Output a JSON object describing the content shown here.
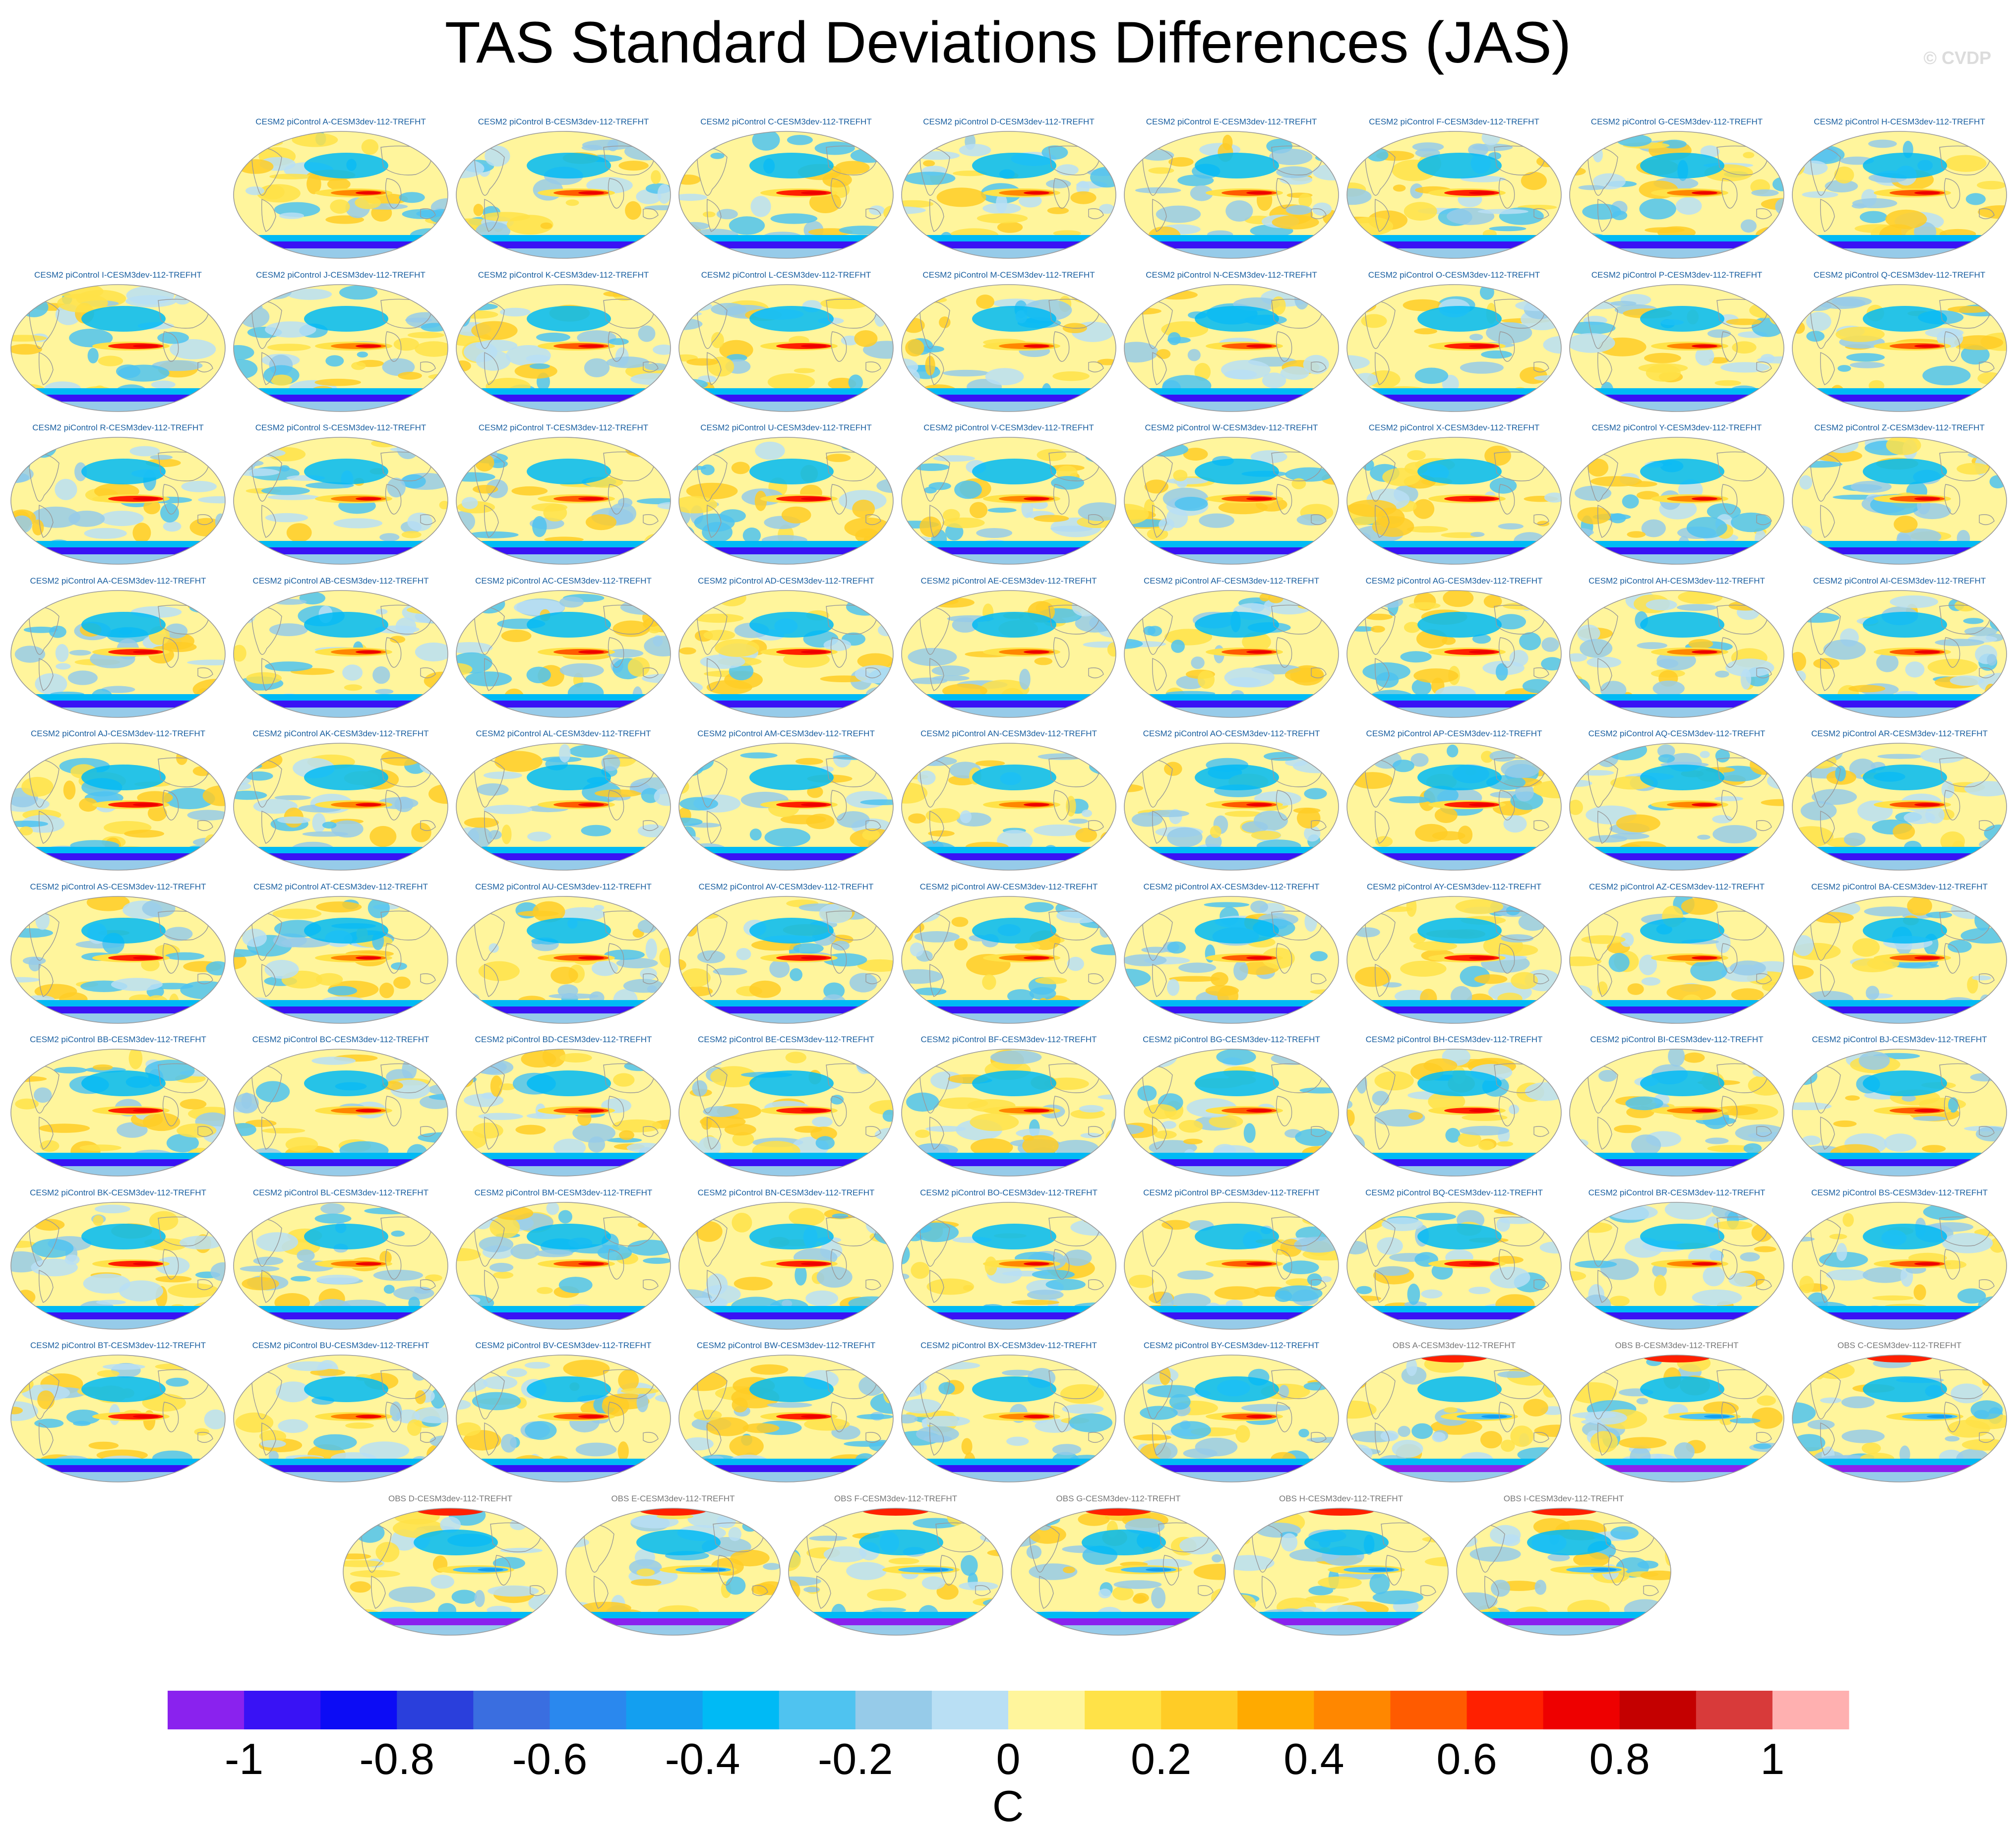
{
  "title": "TAS Standard Deviations Differences (JAS)",
  "credit": "© CVDP",
  "colors": {
    "model_label": "#1a5fa0",
    "obs_label": "#777777",
    "map_outline": "#999999"
  },
  "chart_data": {
    "type": "heatmap",
    "title": "TAS Standard Deviations Differences (JAS)",
    "projection": "Robinson (global)",
    "colorbar": {
      "units": "C",
      "levels": [
        -1.0,
        -0.9,
        -0.8,
        -0.7,
        -0.6,
        -0.5,
        -0.4,
        -0.3,
        -0.2,
        -0.1,
        0.0,
        0.1,
        0.2,
        0.3,
        0.4,
        0.5,
        0.6,
        0.7,
        0.8,
        0.9,
        1.0
      ],
      "tick_labels": [
        "-1",
        "-0.8",
        "-0.6",
        "-0.4",
        "-0.2",
        "0",
        "0.2",
        "0.4",
        "0.6",
        "0.8",
        "1"
      ],
      "tick_values": [
        -1,
        -0.8,
        -0.6,
        -0.4,
        -0.2,
        0,
        0.2,
        0.4,
        0.6,
        0.8,
        1
      ],
      "colors": [
        "#8a22ee",
        "#3912f5",
        "#0c0cf5",
        "#2a3fdc",
        "#3a6ee0",
        "#2a88ee",
        "#139ff0",
        "#00baf5",
        "#4fc3f0",
        "#96cbe9",
        "#b9dff4",
        "#fff59c",
        "#ffe248",
        "#ffcc26",
        "#ffaa00",
        "#ff8700",
        "#ff5b00",
        "#ff2000",
        "#ee0000",
        "#c40000",
        "#d83a3a",
        "#ffb0b0"
      ]
    },
    "panels": [
      {
        "label": "CESM2 piControl A-CESM3dev-112-TREFHT",
        "kind": "model"
      },
      {
        "label": "CESM2 piControl B-CESM3dev-112-TREFHT",
        "kind": "model"
      },
      {
        "label": "CESM2 piControl C-CESM3dev-112-TREFHT",
        "kind": "model"
      },
      {
        "label": "CESM2 piControl D-CESM3dev-112-TREFHT",
        "kind": "model"
      },
      {
        "label": "CESM2 piControl E-CESM3dev-112-TREFHT",
        "kind": "model"
      },
      {
        "label": "CESM2 piControl F-CESM3dev-112-TREFHT",
        "kind": "model"
      },
      {
        "label": "CESM2 piControl G-CESM3dev-112-TREFHT",
        "kind": "model"
      },
      {
        "label": "CESM2 piControl H-CESM3dev-112-TREFHT",
        "kind": "model"
      },
      {
        "label": "CESM2 piControl I-CESM3dev-112-TREFHT",
        "kind": "model"
      },
      {
        "label": "CESM2 piControl J-CESM3dev-112-TREFHT",
        "kind": "model"
      },
      {
        "label": "CESM2 piControl K-CESM3dev-112-TREFHT",
        "kind": "model"
      },
      {
        "label": "CESM2 piControl L-CESM3dev-112-TREFHT",
        "kind": "model"
      },
      {
        "label": "CESM2 piControl M-CESM3dev-112-TREFHT",
        "kind": "model"
      },
      {
        "label": "CESM2 piControl N-CESM3dev-112-TREFHT",
        "kind": "model"
      },
      {
        "label": "CESM2 piControl O-CESM3dev-112-TREFHT",
        "kind": "model"
      },
      {
        "label": "CESM2 piControl P-CESM3dev-112-TREFHT",
        "kind": "model"
      },
      {
        "label": "CESM2 piControl Q-CESM3dev-112-TREFHT",
        "kind": "model"
      },
      {
        "label": "CESM2 piControl R-CESM3dev-112-TREFHT",
        "kind": "model"
      },
      {
        "label": "CESM2 piControl S-CESM3dev-112-TREFHT",
        "kind": "model"
      },
      {
        "label": "CESM2 piControl T-CESM3dev-112-TREFHT",
        "kind": "model"
      },
      {
        "label": "CESM2 piControl U-CESM3dev-112-TREFHT",
        "kind": "model"
      },
      {
        "label": "CESM2 piControl V-CESM3dev-112-TREFHT",
        "kind": "model"
      },
      {
        "label": "CESM2 piControl W-CESM3dev-112-TREFHT",
        "kind": "model"
      },
      {
        "label": "CESM2 piControl X-CESM3dev-112-TREFHT",
        "kind": "model"
      },
      {
        "label": "CESM2 piControl Y-CESM3dev-112-TREFHT",
        "kind": "model"
      },
      {
        "label": "CESM2 piControl Z-CESM3dev-112-TREFHT",
        "kind": "model"
      },
      {
        "label": "CESM2 piControl AA-CESM3dev-112-TREFHT",
        "kind": "model"
      },
      {
        "label": "CESM2 piControl AB-CESM3dev-112-TREFHT",
        "kind": "model"
      },
      {
        "label": "CESM2 piControl AC-CESM3dev-112-TREFHT",
        "kind": "model"
      },
      {
        "label": "CESM2 piControl AD-CESM3dev-112-TREFHT",
        "kind": "model"
      },
      {
        "label": "CESM2 piControl AE-CESM3dev-112-TREFHT",
        "kind": "model"
      },
      {
        "label": "CESM2 piControl AF-CESM3dev-112-TREFHT",
        "kind": "model"
      },
      {
        "label": "CESM2 piControl AG-CESM3dev-112-TREFHT",
        "kind": "model"
      },
      {
        "label": "CESM2 piControl AH-CESM3dev-112-TREFHT",
        "kind": "model"
      },
      {
        "label": "CESM2 piControl AI-CESM3dev-112-TREFHT",
        "kind": "model"
      },
      {
        "label": "CESM2 piControl AJ-CESM3dev-112-TREFHT",
        "kind": "model"
      },
      {
        "label": "CESM2 piControl AK-CESM3dev-112-TREFHT",
        "kind": "model"
      },
      {
        "label": "CESM2 piControl AL-CESM3dev-112-TREFHT",
        "kind": "model"
      },
      {
        "label": "CESM2 piControl AM-CESM3dev-112-TREFHT",
        "kind": "model"
      },
      {
        "label": "CESM2 piControl AN-CESM3dev-112-TREFHT",
        "kind": "model"
      },
      {
        "label": "CESM2 piControl AO-CESM3dev-112-TREFHT",
        "kind": "model"
      },
      {
        "label": "CESM2 piControl AP-CESM3dev-112-TREFHT",
        "kind": "model"
      },
      {
        "label": "CESM2 piControl AQ-CESM3dev-112-TREFHT",
        "kind": "model"
      },
      {
        "label": "CESM2 piControl AR-CESM3dev-112-TREFHT",
        "kind": "model"
      },
      {
        "label": "CESM2 piControl AS-CESM3dev-112-TREFHT",
        "kind": "model"
      },
      {
        "label": "CESM2 piControl AT-CESM3dev-112-TREFHT",
        "kind": "model"
      },
      {
        "label": "CESM2 piControl AU-CESM3dev-112-TREFHT",
        "kind": "model"
      },
      {
        "label": "CESM2 piControl AV-CESM3dev-112-TREFHT",
        "kind": "model"
      },
      {
        "label": "CESM2 piControl AW-CESM3dev-112-TREFHT",
        "kind": "model"
      },
      {
        "label": "CESM2 piControl AX-CESM3dev-112-TREFHT",
        "kind": "model"
      },
      {
        "label": "CESM2 piControl AY-CESM3dev-112-TREFHT",
        "kind": "model"
      },
      {
        "label": "CESM2 piControl AZ-CESM3dev-112-TREFHT",
        "kind": "model"
      },
      {
        "label": "CESM2 piControl BA-CESM3dev-112-TREFHT",
        "kind": "model"
      },
      {
        "label": "CESM2 piControl BB-CESM3dev-112-TREFHT",
        "kind": "model"
      },
      {
        "label": "CESM2 piControl BC-CESM3dev-112-TREFHT",
        "kind": "model"
      },
      {
        "label": "CESM2 piControl BD-CESM3dev-112-TREFHT",
        "kind": "model"
      },
      {
        "label": "CESM2 piControl BE-CESM3dev-112-TREFHT",
        "kind": "model"
      },
      {
        "label": "CESM2 piControl BF-CESM3dev-112-TREFHT",
        "kind": "model"
      },
      {
        "label": "CESM2 piControl BG-CESM3dev-112-TREFHT",
        "kind": "model"
      },
      {
        "label": "CESM2 piControl BH-CESM3dev-112-TREFHT",
        "kind": "model"
      },
      {
        "label": "CESM2 piControl BI-CESM3dev-112-TREFHT",
        "kind": "model"
      },
      {
        "label": "CESM2 piControl BJ-CESM3dev-112-TREFHT",
        "kind": "model"
      },
      {
        "label": "CESM2 piControl BK-CESM3dev-112-TREFHT",
        "kind": "model"
      },
      {
        "label": "CESM2 piControl BL-CESM3dev-112-TREFHT",
        "kind": "model"
      },
      {
        "label": "CESM2 piControl BM-CESM3dev-112-TREFHT",
        "kind": "model"
      },
      {
        "label": "CESM2 piControl BN-CESM3dev-112-TREFHT",
        "kind": "model"
      },
      {
        "label": "CESM2 piControl BO-CESM3dev-112-TREFHT",
        "kind": "model"
      },
      {
        "label": "CESM2 piControl BP-CESM3dev-112-TREFHT",
        "kind": "model"
      },
      {
        "label": "CESM2 piControl BQ-CESM3dev-112-TREFHT",
        "kind": "model"
      },
      {
        "label": "CESM2 piControl BR-CESM3dev-112-TREFHT",
        "kind": "model"
      },
      {
        "label": "CESM2 piControl BS-CESM3dev-112-TREFHT",
        "kind": "model"
      },
      {
        "label": "CESM2 piControl BT-CESM3dev-112-TREFHT",
        "kind": "model"
      },
      {
        "label": "CESM2 piControl BU-CESM3dev-112-TREFHT",
        "kind": "model"
      },
      {
        "label": "CESM2 piControl BV-CESM3dev-112-TREFHT",
        "kind": "model"
      },
      {
        "label": "CESM2 piControl BW-CESM3dev-112-TREFHT",
        "kind": "model"
      },
      {
        "label": "CESM2 piControl BX-CESM3dev-112-TREFHT",
        "kind": "model"
      },
      {
        "label": "CESM2 piControl BY-CESM3dev-112-TREFHT",
        "kind": "model"
      },
      {
        "label": "OBS A-CESM3dev-112-TREFHT",
        "kind": "obs"
      },
      {
        "label": "OBS B-CESM3dev-112-TREFHT",
        "kind": "obs"
      },
      {
        "label": "OBS C-CESM3dev-112-TREFHT",
        "kind": "obs"
      },
      {
        "label": "OBS D-CESM3dev-112-TREFHT",
        "kind": "obs"
      },
      {
        "label": "OBS E-CESM3dev-112-TREFHT",
        "kind": "obs"
      },
      {
        "label": "OBS F-CESM3dev-112-TREFHT",
        "kind": "obs"
      },
      {
        "label": "OBS G-CESM3dev-112-TREFHT",
        "kind": "obs"
      },
      {
        "label": "OBS H-CESM3dev-112-TREFHT",
        "kind": "obs"
      },
      {
        "label": "OBS I-CESM3dev-112-TREFHT",
        "kind": "obs"
      }
    ]
  }
}
